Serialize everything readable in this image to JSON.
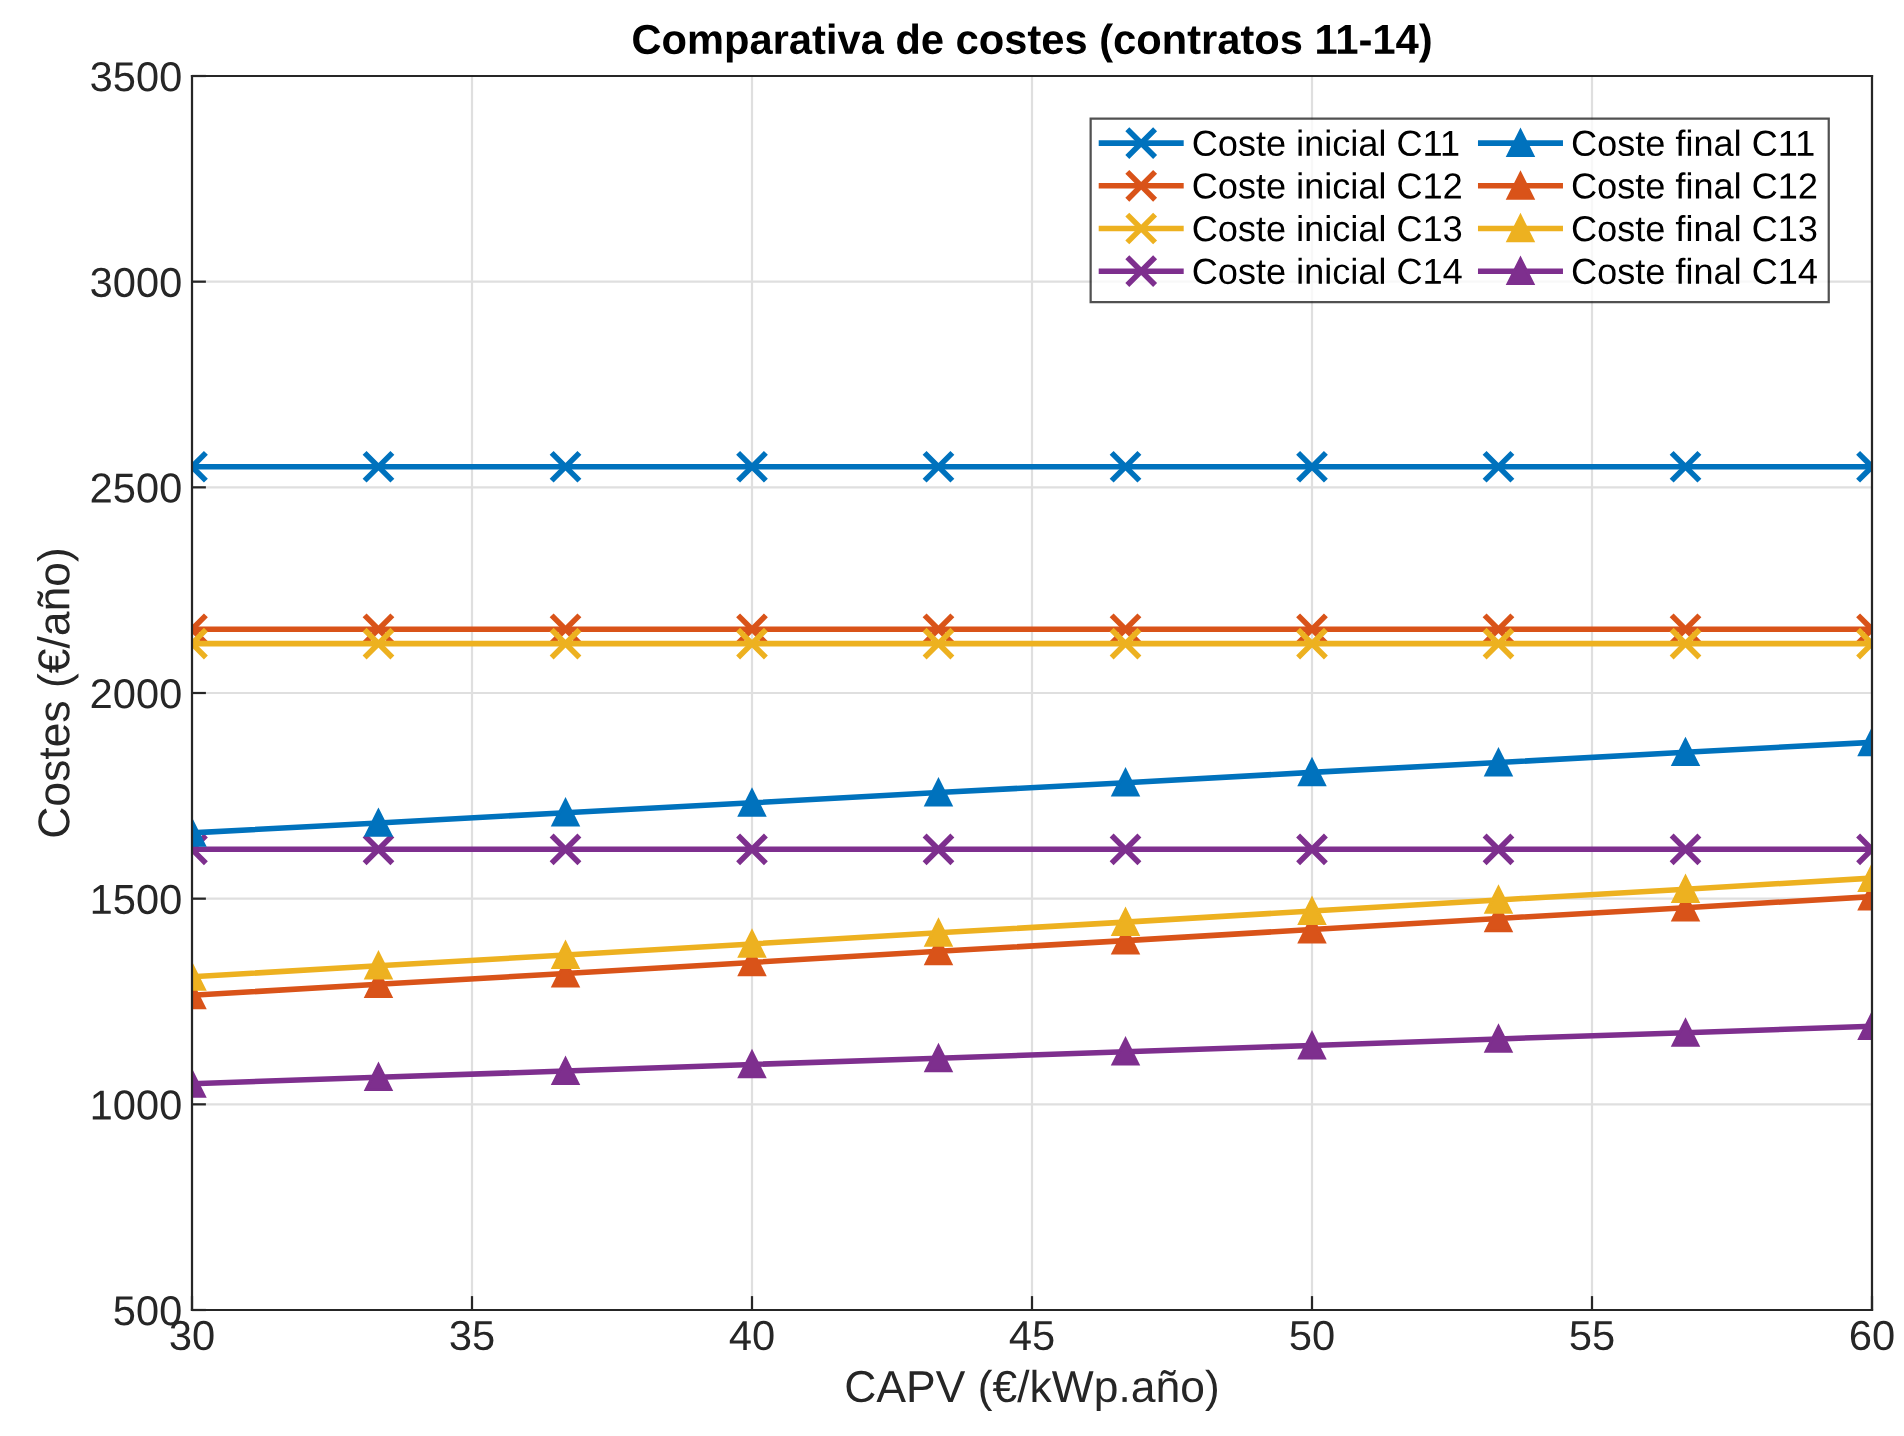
{
  "chart_data": {
    "type": "line",
    "title": "Comparativa de costes (contratos 11-14)",
    "xlabel": "CAPV (€/kWp.año)",
    "ylabel": "Costes (€/año)",
    "x": [
      30,
      33.33,
      36.67,
      40,
      43.33,
      46.67,
      50,
      53.33,
      56.67,
      60
    ],
    "xlim": [
      30,
      60
    ],
    "xticks": [
      30,
      35,
      40,
      45,
      50,
      55,
      60
    ],
    "ylim": [
      500,
      3500
    ],
    "yticks": [
      500,
      1000,
      1500,
      2000,
      2500,
      3000,
      3500
    ],
    "grid": true,
    "legend": "top right",
    "line_style": "solid",
    "series": [
      {
        "name": "Coste inicial C11",
        "color": "#0072bd",
        "marker": "cross",
        "values": [
          2550,
          2550,
          2550,
          2550,
          2550,
          2550,
          2550,
          2550,
          2550,
          2550
        ]
      },
      {
        "name": "Coste inicial C12",
        "color": "#d95319",
        "marker": "cross",
        "values": [
          2155,
          2155,
          2155,
          2155,
          2155,
          2155,
          2155,
          2155,
          2155,
          2155
        ]
      },
      {
        "name": "Coste inicial C13",
        "color": "#edb120",
        "marker": "cross",
        "values": [
          2120,
          2120,
          2120,
          2120,
          2120,
          2120,
          2120,
          2120,
          2120,
          2120
        ]
      },
      {
        "name": "Coste inicial C14",
        "color": "#7e2f8e",
        "marker": "cross",
        "values": [
          1620,
          1620,
          1620,
          1620,
          1620,
          1620,
          1620,
          1620,
          1620,
          1620
        ]
      },
      {
        "name": "Coste final C11",
        "color": "#0072bd",
        "marker": "triangle",
        "values": [
          1660,
          1684,
          1709,
          1733,
          1758,
          1782,
          1807,
          1831,
          1856,
          1880
        ]
      },
      {
        "name": "Coste final C12",
        "color": "#d95319",
        "marker": "triangle",
        "values": [
          1265,
          1292,
          1318,
          1345,
          1372,
          1398,
          1425,
          1452,
          1478,
          1505
        ]
      },
      {
        "name": "Coste final C13",
        "color": "#edb120",
        "marker": "triangle",
        "values": [
          1310,
          1337,
          1363,
          1390,
          1417,
          1443,
          1470,
          1497,
          1523,
          1550
        ]
      },
      {
        "name": "Coste final C14",
        "color": "#7e2f8e",
        "marker": "triangle",
        "values": [
          1050,
          1066,
          1081,
          1097,
          1112,
          1128,
          1143,
          1159,
          1174,
          1190
        ]
      }
    ]
  }
}
